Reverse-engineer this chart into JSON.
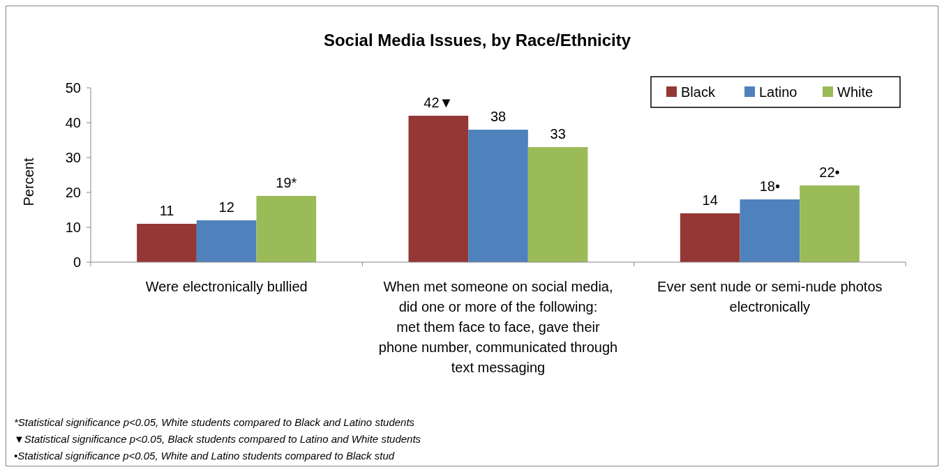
{
  "chart_data": {
    "type": "bar",
    "title": "Social Media Issues, by Race/Ethnicity",
    "ylabel": "Percent",
    "categories": [
      "Were electronically bullied",
      "When met someone on social media, did one or more of the following: met them face to face, gave their phone number, communicated through text messaging",
      "Ever sent nude or semi-nude photos electronically"
    ],
    "series": [
      {
        "name": "Black",
        "color": "#953735",
        "values": [
          11,
          42,
          14
        ],
        "value_labels": [
          "11",
          "42▼",
          "14"
        ]
      },
      {
        "name": "Latino",
        "color": "#4f81bd",
        "values": [
          12,
          38,
          18
        ],
        "value_labels": [
          "12",
          "38",
          "18•"
        ]
      },
      {
        "name": "White",
        "color": "#9bbb59",
        "values": [
          19,
          33,
          22
        ],
        "value_labels": [
          "19*",
          "33",
          "22•"
        ]
      }
    ],
    "ylim": [
      0,
      50
    ],
    "yticks": [
      0,
      10,
      20,
      30,
      40,
      50
    ],
    "grid": false,
    "legend": "top right",
    "annotations": [
      "*Statistical significance p<0.05, White students compared to Black and Latino students",
      "▼Statistical significance p<0.05, Black students compared to Latino and White students",
      "•Statistical significance p<0.05, White and Latino students compared to Black  stud"
    ]
  }
}
